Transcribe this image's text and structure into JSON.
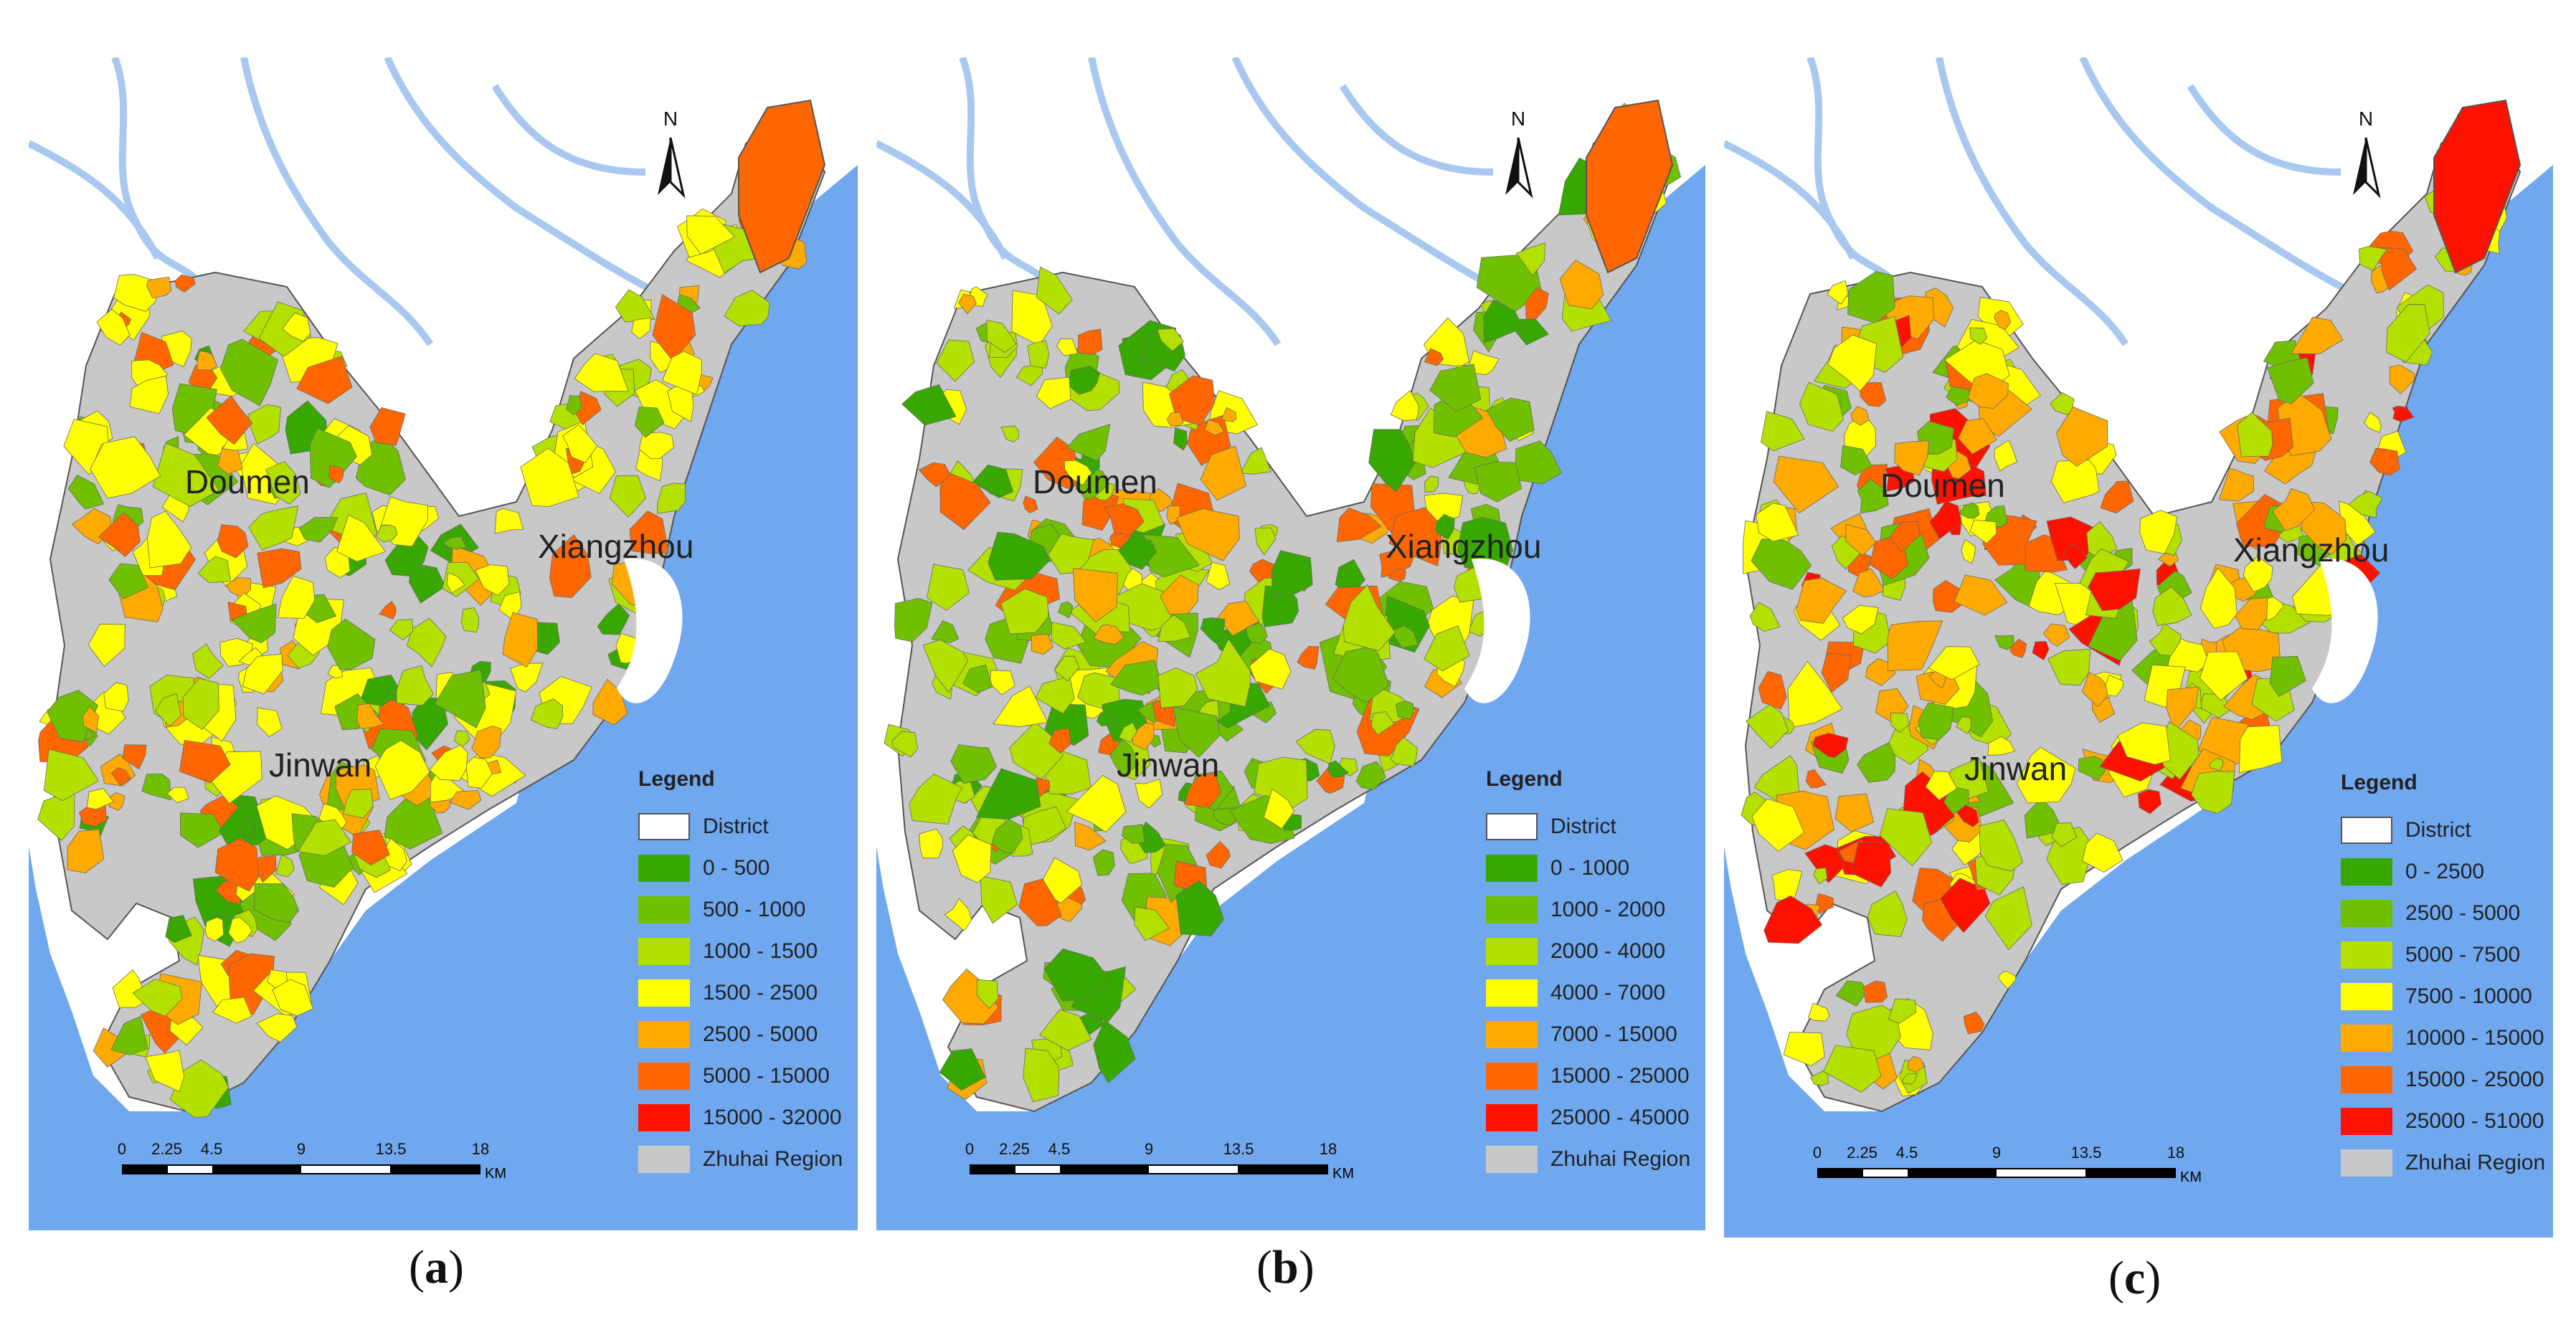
{
  "panels": [
    {
      "id": "a",
      "caption_letter": "a",
      "districts": [
        "Doumen",
        "Xiangzhou",
        "Jinwan"
      ],
      "north": "N",
      "legend": {
        "title": "Legend",
        "items": [
          {
            "label": "District",
            "color": "#ffffff",
            "kind": "district"
          },
          {
            "label": "0 - 500",
            "color": "#38a800"
          },
          {
            "label": "500 - 1000",
            "color": "#70c000"
          },
          {
            "label": "1000 - 1500",
            "color": "#b4e000"
          },
          {
            "label": "1500 - 2500",
            "color": "#ffff00"
          },
          {
            "label": "2500 - 5000",
            "color": "#ffaa00"
          },
          {
            "label": "5000 - 15000",
            "color": "#ff6600"
          },
          {
            "label": "15000 - 32000",
            "color": "#ff1100"
          },
          {
            "label": "Zhuhai Region",
            "color": "#c8c8c8"
          }
        ]
      },
      "scale": {
        "ticks": [
          "0",
          "2.25",
          "4.5",
          "9",
          "13.5",
          "18"
        ],
        "unit": "KM"
      }
    },
    {
      "id": "b",
      "caption_letter": "b",
      "districts": [
        "Doumen",
        "Xiangzhou",
        "Jinwan"
      ],
      "north": "N",
      "legend": {
        "title": "Legend",
        "items": [
          {
            "label": "District",
            "color": "#ffffff",
            "kind": "district"
          },
          {
            "label": "0 - 1000",
            "color": "#38a800"
          },
          {
            "label": "1000 - 2000",
            "color": "#70c000"
          },
          {
            "label": "2000 - 4000",
            "color": "#b4e000"
          },
          {
            "label": "4000 - 7000",
            "color": "#ffff00"
          },
          {
            "label": "7000 - 15000",
            "color": "#ffaa00"
          },
          {
            "label": "15000 - 25000",
            "color": "#ff6600"
          },
          {
            "label": "25000 - 45000",
            "color": "#ff1100"
          },
          {
            "label": "Zhuhai Region",
            "color": "#c8c8c8"
          }
        ]
      },
      "scale": {
        "ticks": [
          "0",
          "2.25",
          "4.5",
          "9",
          "13.5",
          "18"
        ],
        "unit": "KM"
      }
    },
    {
      "id": "c",
      "caption_letter": "c",
      "districts": [
        "Doumen",
        "Xiangzhou",
        "Jinwan"
      ],
      "north": "N",
      "legend": {
        "title": "Legend",
        "items": [
          {
            "label": "District",
            "color": "#ffffff",
            "kind": "district"
          },
          {
            "label": "0 - 2500",
            "color": "#38a800"
          },
          {
            "label": "2500 - 5000",
            "color": "#70c000"
          },
          {
            "label": "5000 - 7500",
            "color": "#b4e000"
          },
          {
            "label": "7500 - 10000",
            "color": "#ffff00"
          },
          {
            "label": "10000 - 15000",
            "color": "#ffaa00"
          },
          {
            "label": "15000 - 25000",
            "color": "#ff6600"
          },
          {
            "label": "25000 - 51000",
            "color": "#ff1100"
          },
          {
            "label": "Zhuhai Region",
            "color": "#c8c8c8"
          }
        ]
      },
      "scale": {
        "ticks": [
          "0",
          "2.25",
          "4.5",
          "9",
          "13.5",
          "18"
        ],
        "unit": "KM"
      }
    }
  ],
  "colors": {
    "sea": "#6fa8ef",
    "land": "#ffffff",
    "region": "#c8c8c8",
    "river": "#a8c8f0"
  }
}
